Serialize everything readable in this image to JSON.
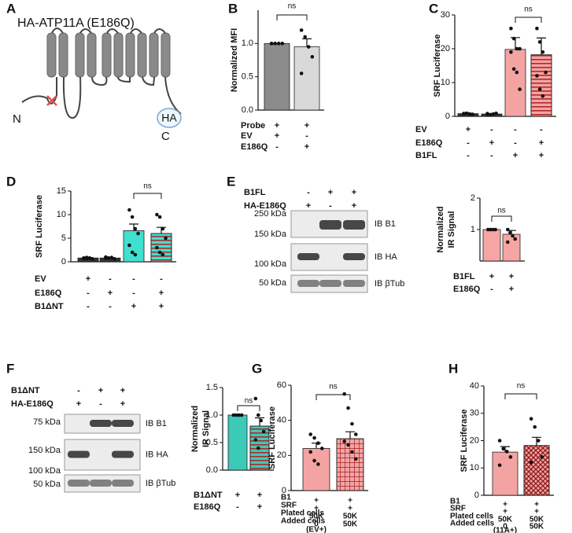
{
  "diagram": {
    "panel": "A",
    "title": "HA-ATP11A (E186Q)",
    "n_term": "N",
    "tag": "HA",
    "c_term": "C"
  },
  "blots": [
    {
      "panel": "E",
      "conditions": [
        {
          "label": "B1FL",
          "signs": [
            "-",
            "+",
            "+"
          ]
        },
        {
          "label": "HA-E186Q",
          "signs": [
            "+",
            "-",
            "+"
          ]
        }
      ],
      "rows": [
        {
          "markers": [
            "250 kDa",
            "150 kDa"
          ],
          "probe": "IB B1"
        },
        {
          "markers": [
            "100 kDa"
          ],
          "probe": "IB HA"
        },
        {
          "markers": [
            "50 kDa"
          ],
          "probe": "IB βTub"
        }
      ]
    },
    {
      "panel": "F",
      "conditions": [
        {
          "label": "B1ΔNT",
          "signs": [
            "-",
            "+",
            "+"
          ]
        },
        {
          "label": "HA-E186Q",
          "signs": [
            "+",
            "-",
            "+"
          ]
        }
      ],
      "rows": [
        {
          "markers": [
            "75 kDa"
          ],
          "probe": "IB B1"
        },
        {
          "markers": [
            "150 kDa",
            "100 kDa"
          ],
          "probe": "IB HA"
        },
        {
          "markers": [
            "50 kDa"
          ],
          "probe": "IB βTub"
        }
      ]
    }
  ],
  "chart_data": [
    {
      "type": "bar",
      "panel": "B",
      "ylabel": "Normalized MFI",
      "categories": [
        null,
        null
      ],
      "values": [
        1.0,
        0.95
      ],
      "errors": [
        0,
        0.12
      ],
      "points": [
        [
          1,
          1,
          1,
          1,
          1
        ],
        [
          1.2,
          1.1,
          0.95,
          0.8,
          0.55
        ]
      ],
      "colors": [
        "#8c8c8c",
        "#d9d9d9"
      ],
      "ylim": [
        0,
        1.5
      ],
      "yticks": [
        {
          "value": 0,
          "label": "0.0"
        },
        {
          "value": 0.5,
          "label": "0.5"
        },
        {
          "value": 1,
          "label": "1.0"
        }
      ],
      "annotation": "ns",
      "conditions": [
        {
          "label": "Probe",
          "signs": [
            "+",
            "+"
          ]
        },
        {
          "label": "EV",
          "signs": [
            "+",
            "-"
          ]
        },
        {
          "label": "E186Q",
          "signs": [
            "-",
            "+"
          ]
        }
      ]
    },
    {
      "type": "bar",
      "panel": "C",
      "ylabel": "SRF Luciferase",
      "categories": [
        null,
        null,
        null,
        null
      ],
      "values": [
        0.8,
        0.7,
        19.8,
        18.2
      ],
      "errors": [
        0.1,
        0.1,
        3.5,
        5
      ],
      "points": [
        [
          0.8,
          0.9,
          0.7,
          0.6,
          0.8,
          0.9,
          0.7
        ],
        [
          0.8,
          0.5,
          0.7,
          0.9,
          0.6
        ],
        [
          26,
          23,
          20,
          20,
          19,
          14,
          13,
          8
        ],
        [
          26,
          22,
          19,
          13,
          12,
          8,
          6
        ]
      ],
      "colors": [
        "#333333",
        "#333333",
        "#f4a3a3",
        "#f4a3a3"
      ],
      "hatch": [
        null,
        null,
        null,
        "stripes"
      ],
      "ylim": [
        0,
        30
      ],
      "yticks": [
        0,
        10,
        20,
        30
      ],
      "annotation": "ns",
      "conditions": [
        {
          "label": "EV",
          "signs": [
            "+",
            "-",
            "-",
            "-"
          ]
        },
        {
          "label": "E186Q",
          "signs": [
            "-",
            "+",
            "-",
            "+"
          ]
        },
        {
          "label": "B1FL",
          "signs": [
            "-",
            "-",
            "+",
            "+"
          ]
        }
      ]
    },
    {
      "type": "bar",
      "panel": "D",
      "ylabel": "SRF Luciferase",
      "categories": [
        null,
        null,
        null,
        null
      ],
      "values": [
        0.8,
        0.8,
        6.6,
        6.0
      ],
      "errors": [
        0.1,
        0.1,
        1.4,
        1.3
      ],
      "points": [
        [
          0.7,
          0.9,
          0.8,
          0.6,
          0.8,
          0.7
        ],
        [
          1.0,
          0.8,
          0.9,
          0.6,
          0.8
        ],
        [
          11,
          9.5,
          7,
          6,
          3.5,
          2,
          1.5
        ],
        [
          10,
          9.5,
          7,
          5,
          3,
          2,
          1.5
        ]
      ],
      "colors": [
        "#333333",
        "#333333",
        "#3fe0d0",
        "#3fe0d0"
      ],
      "hatch": [
        null,
        null,
        null,
        "stripes"
      ],
      "ylim": [
        0,
        15
      ],
      "yticks": [
        0,
        5,
        10,
        15
      ],
      "annotation": "ns",
      "conditions": [
        {
          "label": "EV",
          "signs": [
            "+",
            "-",
            "-",
            "-"
          ]
        },
        {
          "label": "E186Q",
          "signs": [
            "-",
            "+",
            "-",
            "+"
          ]
        },
        {
          "label": "B1ΔNT",
          "signs": [
            "-",
            "-",
            "+",
            "+"
          ]
        }
      ]
    },
    {
      "type": "bar",
      "ylabel": [
        "Normalized",
        "IR Signal"
      ],
      "categories": [
        null,
        null
      ],
      "values": [
        1.0,
        0.85
      ],
      "errors": [
        0,
        0.12
      ],
      "points": [
        [
          1,
          1,
          1,
          1
        ],
        [
          1.0,
          0.9,
          0.8,
          0.7,
          0.6
        ]
      ],
      "colors": [
        "#f6a5a5",
        "#f6a5a5"
      ],
      "ylim": [
        0,
        2
      ],
      "yticks": [
        1,
        2
      ],
      "annotation": "ns",
      "conditions": [
        {
          "label": "B1FL",
          "signs": [
            "+",
            "+"
          ]
        },
        {
          "label": "E186Q",
          "signs": [
            "-",
            "+"
          ]
        }
      ]
    },
    {
      "type": "bar",
      "ylabel": [
        "Normalized",
        "IR Signal"
      ],
      "categories": [
        null,
        null
      ],
      "values": [
        1.0,
        0.8
      ],
      "errors": [
        0,
        0.15
      ],
      "points": [
        [
          1,
          1,
          1,
          1
        ],
        [
          1.3,
          1.0,
          0.9,
          0.7,
          0.55,
          0.4
        ]
      ],
      "colors": [
        "#3cc9b8",
        "#3cc9b8"
      ],
      "hatch": [
        null,
        "stripes"
      ],
      "ylim": [
        0,
        1.5
      ],
      "yticks": [
        {
          "value": 0,
          "label": "0.0"
        },
        {
          "value": 0.5,
          "label": "0.5"
        },
        {
          "value": 1,
          "label": "1.0"
        },
        {
          "value": 1.5,
          "label": "1.5"
        }
      ],
      "annotation": "ns",
      "conditions": [
        {
          "label": "B1ΔNT",
          "signs": [
            "+",
            "+"
          ]
        },
        {
          "label": "E186Q",
          "signs": [
            "-",
            "+"
          ]
        }
      ]
    },
    {
      "type": "bar",
      "panel": "G",
      "ylabel": "SRF Luciferase",
      "categories": [
        null,
        null
      ],
      "values": [
        24,
        29.5
      ],
      "errors": [
        3,
        4
      ],
      "points": [
        [
          32,
          30,
          27,
          24,
          22,
          17,
          15
        ],
        [
          55,
          47,
          38,
          32,
          28,
          26,
          22,
          18
        ]
      ],
      "colors": [
        "#f4a3a3",
        "#f4a3a3"
      ],
      "hatch": [
        null,
        "grid"
      ],
      "ylim": [
        0,
        60
      ],
      "yticks": [
        0,
        20,
        40,
        60
      ],
      "annotation": "ns",
      "conditions": [
        {
          "label": "B1",
          "signs": [
            "+",
            "+"
          ]
        },
        {
          "label": "SRF",
          "signs": [
            "+",
            "+"
          ]
        },
        {
          "label": "Plated cells",
          "signs": [
            "50K",
            "50K"
          ]
        },
        {
          "label": "Added cells",
          "signs": [
            "0",
            "50K"
          ]
        }
      ],
      "footnote": "(EV+)"
    },
    {
      "type": "bar",
      "panel": "H",
      "ylabel": "SRF Luciferase",
      "categories": [
        null,
        null
      ],
      "values": [
        15.8,
        18.2
      ],
      "errors": [
        2,
        3
      ],
      "points": [
        [
          20,
          17,
          16,
          14,
          11
        ],
        [
          28,
          25,
          20,
          14,
          12
        ]
      ],
      "colors": [
        "#f4a3a3",
        "#f4a3a3"
      ],
      "hatch": [
        null,
        "cross"
      ],
      "ylim": [
        0,
        40
      ],
      "yticks": [
        0,
        10,
        20,
        30,
        40
      ],
      "annotation": "ns",
      "conditions": [
        {
          "label": "B1",
          "signs": [
            "+",
            "+"
          ]
        },
        {
          "label": "SRF",
          "signs": [
            "+",
            "+"
          ]
        },
        {
          "label": "Plated cells",
          "signs": [
            "50K",
            "50K"
          ]
        },
        {
          "label": "Added cells",
          "signs": [
            "0",
            "50K"
          ]
        }
      ],
      "footnote": "(11A+)"
    }
  ]
}
